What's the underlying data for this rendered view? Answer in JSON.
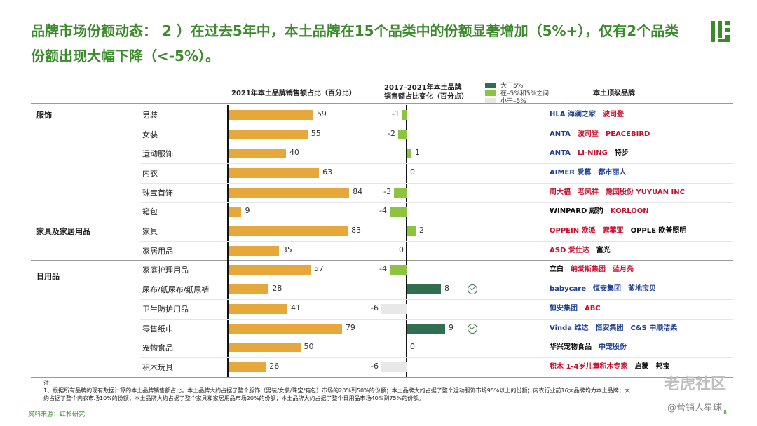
{
  "title": "品牌市场份额动态： 2 ）在过去5年中，本土品牌在15个品类中的份额显著增加（5%+），仅有2个品类份额出现大幅下降（<-5%）。",
  "headers": {
    "share": "2021年本土品牌销售额占比（百分比）",
    "change_line1": "2017–2021年本土品牌",
    "change_line2": "销售额占比变化（百分点）",
    "brands": "本土顶级品牌"
  },
  "legend": [
    {
      "label": "大于5%",
      "color": "#2f6e4f"
    },
    {
      "label": "在–5%和5%之间",
      "color": "#8dc43f"
    },
    {
      "label": "小于–5%",
      "color": "#e8e8e8"
    }
  ],
  "colors": {
    "accent": "#3b8a2b",
    "share_bar": "#e7a83b",
    "change_large_pos": "#2f6e4f",
    "change_mid": "#8dc43f",
    "change_large_neg": "#e8e8e8"
  },
  "groups": [
    {
      "label": "服饰"
    },
    {
      "label": "家具及家居用品"
    },
    {
      "label": "日用品"
    }
  ],
  "chart_data": {
    "type": "bar",
    "categories": [
      "男装",
      "女装",
      "运动服饰",
      "内衣",
      "珠宝首饰",
      "箱包",
      "家具",
      "家居用品",
      "家庭护理用品",
      "尿布/纸尿布/纸尿裤",
      "卫生防护用品",
      "零售纸巾",
      "宠物食品",
      "积木玩具"
    ],
    "series": [
      {
        "values": [
          59,
          55,
          40,
          63,
          84,
          9,
          83,
          35,
          57,
          28,
          41,
          79,
          50,
          26
        ]
      },
      {
        "values": [
          -1,
          -2,
          1,
          0,
          -3,
          -4,
          2,
          0,
          -4,
          8,
          -6,
          9,
          0,
          -6
        ]
      }
    ],
    "change_value_labels": [
      "-1",
      "-2",
      "1",
      "0",
      "-3",
      "-4",
      "2",
      "0",
      "-4",
      "8",
      "-6",
      "9",
      "0",
      "-6"
    ],
    "group_of_category": [
      0,
      0,
      0,
      0,
      0,
      0,
      1,
      1,
      2,
      2,
      2,
      2,
      2,
      2
    ],
    "highlighted_categories": [
      "尿布/纸尿布/纸尿裤",
      "零售纸巾"
    ],
    "title": "",
    "xlabel": "",
    "ylabel": ""
  },
  "brands": [
    [
      "HLA 海澜之家",
      "波司登"
    ],
    [
      "ANTA",
      "波司登",
      "PEACEBIRD"
    ],
    [
      "ANTA",
      "LI-NING",
      "特步"
    ],
    [
      "AIMER 爱慕",
      "都市丽人"
    ],
    [
      "周大福",
      "老凤祥",
      "豫园股份 YUYUAN INC"
    ],
    [
      "WINPARD 威豹",
      "KORLOON"
    ],
    [
      "OPPEIN 欧派",
      "索菲亚",
      "OPPLE 欧普照明"
    ],
    [
      "ASD 爱仕达",
      "富光"
    ],
    [
      "立白",
      "纳爱斯集团",
      "蓝月亮"
    ],
    [
      "babycare",
      "恒安集团",
      "爹地宝贝"
    ],
    [
      "恒安集团",
      "ABC"
    ],
    [
      "Vinda 维达",
      "恒安集团",
      "C&S 中顺洁柔"
    ],
    [
      "华兴宠物食品",
      "中宠股份"
    ],
    [
      "积木 1-4岁儿童积木专家",
      "启蒙",
      "邦宝"
    ]
  ],
  "notes": {
    "label": "注:",
    "line1": "1、根据所有品牌的现有数据计算的本土品牌销售额占比。本土品牌大约占据了整个服饰（男装/女装/珠宝/箱包）市场的20%到50%的份额；本土品牌大约占据了整个运动服饰市场95%以上的份额；内衣行业前16大品牌均为本土品牌；大",
    "line2": "约占据了整个内衣市场10%的份额；本土品牌大约占据了整个家具和家居用品市场20%的份额；本土品牌大约占据了整个日用品市场40%到75%的份额。"
  },
  "source": "资料来源：红杉研究",
  "page_number": "8",
  "watermark": {
    "main": "老虎社区",
    "sub": "@营销人星球"
  }
}
